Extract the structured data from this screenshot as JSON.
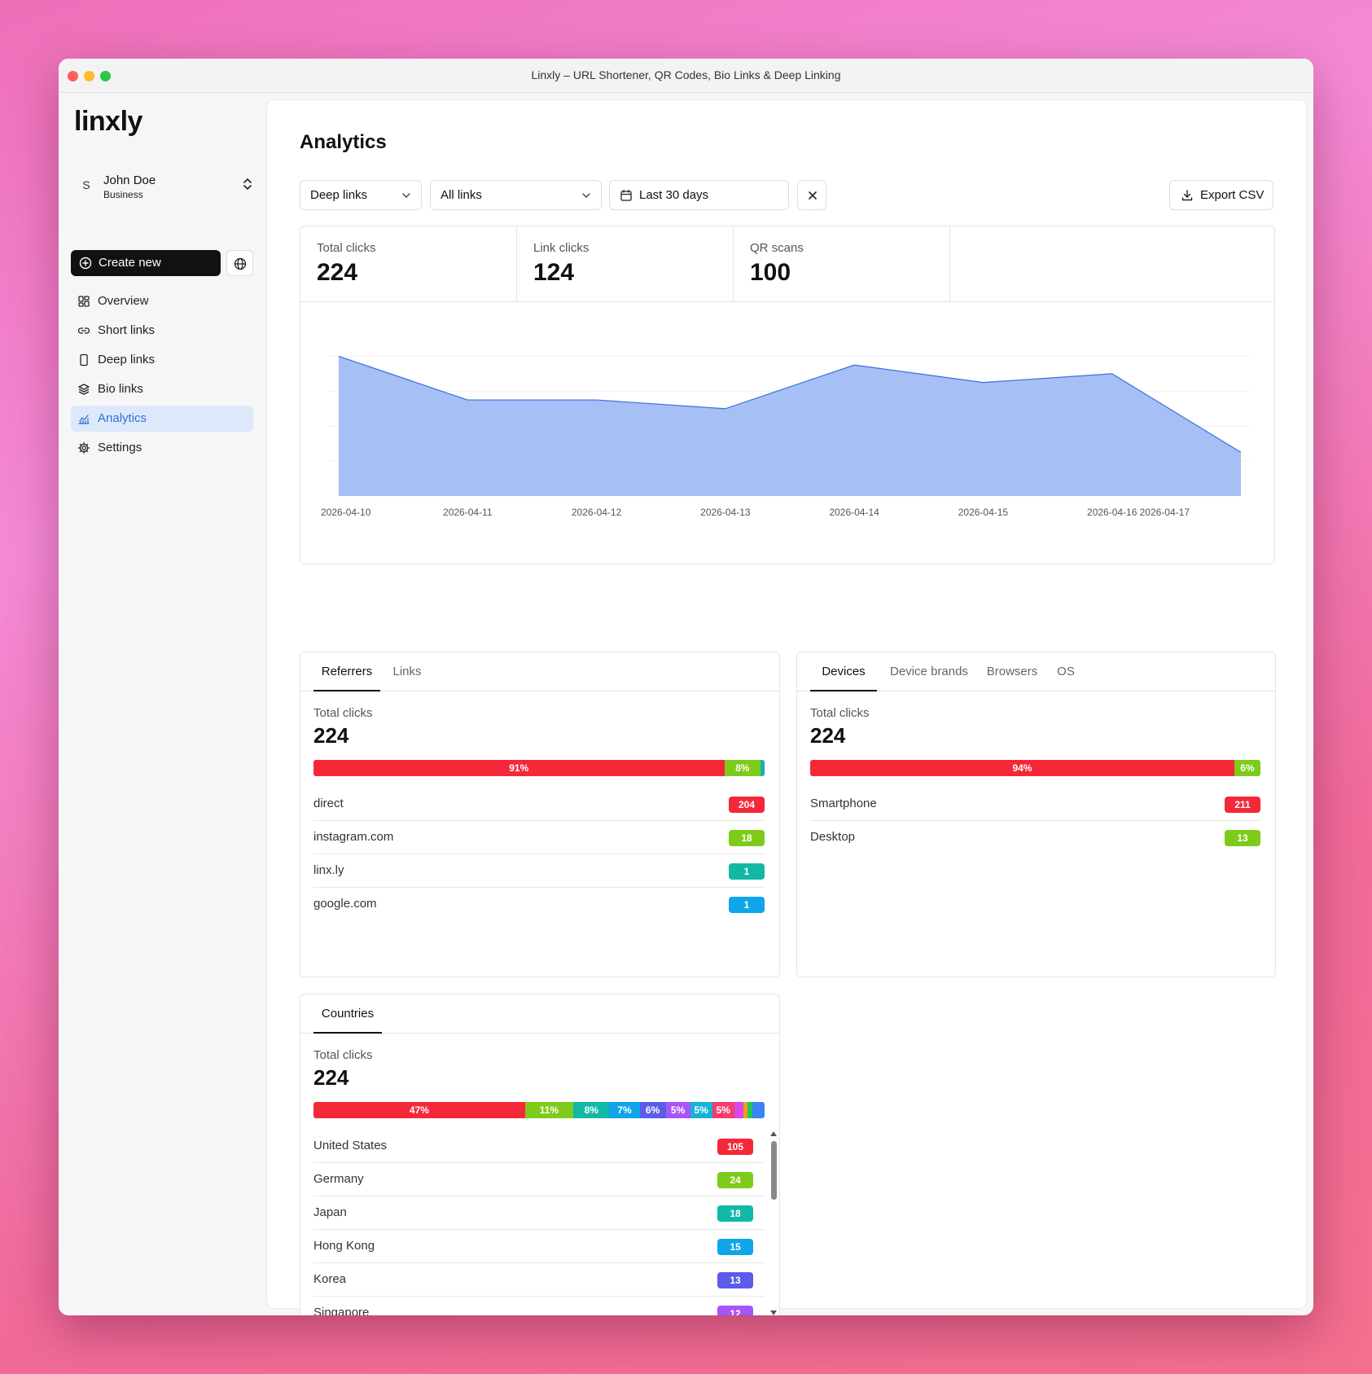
{
  "window": {
    "title": "Linxly – URL Shortener, QR Codes, Bio Links & Deep Linking"
  },
  "sidebar": {
    "logo": "linxly",
    "user": {
      "initial": "S",
      "name": "John Doe",
      "plan": "Business"
    },
    "create_label": "Create new",
    "items": [
      {
        "label": "Overview",
        "icon": "grid-icon"
      },
      {
        "label": "Short links",
        "icon": "link-icon"
      },
      {
        "label": "Deep links",
        "icon": "smartphone-icon"
      },
      {
        "label": "Bio links",
        "icon": "layers-icon"
      },
      {
        "label": "Analytics",
        "icon": "chart-icon",
        "active": true
      },
      {
        "label": "Settings",
        "icon": "gear-icon"
      }
    ]
  },
  "main": {
    "title": "Analytics",
    "filters": {
      "type": "Deep links",
      "links": "All links",
      "date": "Last 30 days"
    },
    "export_label": "Export CSV",
    "stats": [
      {
        "label": "Total clicks",
        "value": "224"
      },
      {
        "label": "Link clicks",
        "value": "124"
      },
      {
        "label": "QR scans",
        "value": "100"
      }
    ]
  },
  "chart_data": {
    "type": "area",
    "x": [
      "2026-04-10",
      "2026-04-11",
      "2026-04-12",
      "2026-04-13",
      "2026-04-14",
      "2026-04-15",
      "2026-04-16",
      "2026-04-17"
    ],
    "series": [
      {
        "values": [
          40,
          27.5,
          27.5,
          25,
          37.5,
          32.5,
          35,
          12.5
        ]
      }
    ],
    "ylim": [
      0,
      45
    ],
    "grid": true,
    "color": "#a6bff5",
    "line_color": "#3b6fe0"
  },
  "referrers": {
    "tabs": [
      "Referrers",
      "Links"
    ],
    "total_label": "Total clicks",
    "total": "224",
    "segments": [
      {
        "label": "91%",
        "pct": 91.07,
        "color": "#f5283a"
      },
      {
        "label": "8%",
        "pct": 8.04,
        "color": "#7ecb1b"
      },
      {
        "label": "",
        "pct": 0.45,
        "color": "#12b8a6"
      },
      {
        "label": "",
        "pct": 0.45,
        "color": "#0ea5e9"
      }
    ],
    "rows": [
      {
        "name": "direct",
        "count": "204",
        "color": "#f5283a"
      },
      {
        "name": "instagram.com",
        "count": "18",
        "color": "#7ecb1b"
      },
      {
        "name": "linx.ly",
        "count": "1",
        "color": "#12b8a6"
      },
      {
        "name": "google.com",
        "count": "1",
        "color": "#0ea5e9"
      }
    ]
  },
  "devices": {
    "tabs": [
      "Devices",
      "Device brands",
      "Browsers",
      "OS"
    ],
    "total_label": "Total clicks",
    "total": "224",
    "segments": [
      {
        "label": "94%",
        "pct": 94.2,
        "color": "#f5283a"
      },
      {
        "label": "6%",
        "pct": 5.8,
        "color": "#7ecb1b"
      }
    ],
    "rows": [
      {
        "name": "Smartphone",
        "count": "211",
        "color": "#f5283a"
      },
      {
        "name": "Desktop",
        "count": "13",
        "color": "#7ecb1b"
      }
    ]
  },
  "countries": {
    "tabs": [
      "Countries"
    ],
    "total_label": "Total clicks",
    "total": "224",
    "segments": [
      {
        "label": "47%",
        "pct": 46.9,
        "color": "#f5283a"
      },
      {
        "label": "11%",
        "pct": 10.7,
        "color": "#7ecb1b"
      },
      {
        "label": "8%",
        "pct": 8.0,
        "color": "#12b8a6"
      },
      {
        "label": "7%",
        "pct": 6.7,
        "color": "#0ea5e9"
      },
      {
        "label": "6%",
        "pct": 5.8,
        "color": "#5b5ce8"
      },
      {
        "label": "5%",
        "pct": 5.4,
        "color": "#a855f7"
      },
      {
        "label": "5%",
        "pct": 4.9,
        "color": "#14b3d9"
      },
      {
        "label": "5%",
        "pct": 4.9,
        "color": "#f43f6a"
      },
      {
        "label": "",
        "pct": 2.0,
        "color": "#d946ef"
      },
      {
        "label": "",
        "pct": 1.0,
        "color": "#f59e0b"
      },
      {
        "label": "",
        "pct": 1.0,
        "color": "#22c55e"
      },
      {
        "label": "",
        "pct": 2.7,
        "color": "#3b82f6"
      }
    ],
    "rows": [
      {
        "name": "United States",
        "count": "105",
        "color": "#f5283a"
      },
      {
        "name": "Germany",
        "count": "24",
        "color": "#7ecb1b"
      },
      {
        "name": "Japan",
        "count": "18",
        "color": "#12b8a6"
      },
      {
        "name": "Hong Kong",
        "count": "15",
        "color": "#0ea5e9"
      },
      {
        "name": "Korea",
        "count": "13",
        "color": "#5b5ce8"
      },
      {
        "name": "Singapore",
        "count": "12",
        "color": "#a855f7"
      }
    ]
  }
}
